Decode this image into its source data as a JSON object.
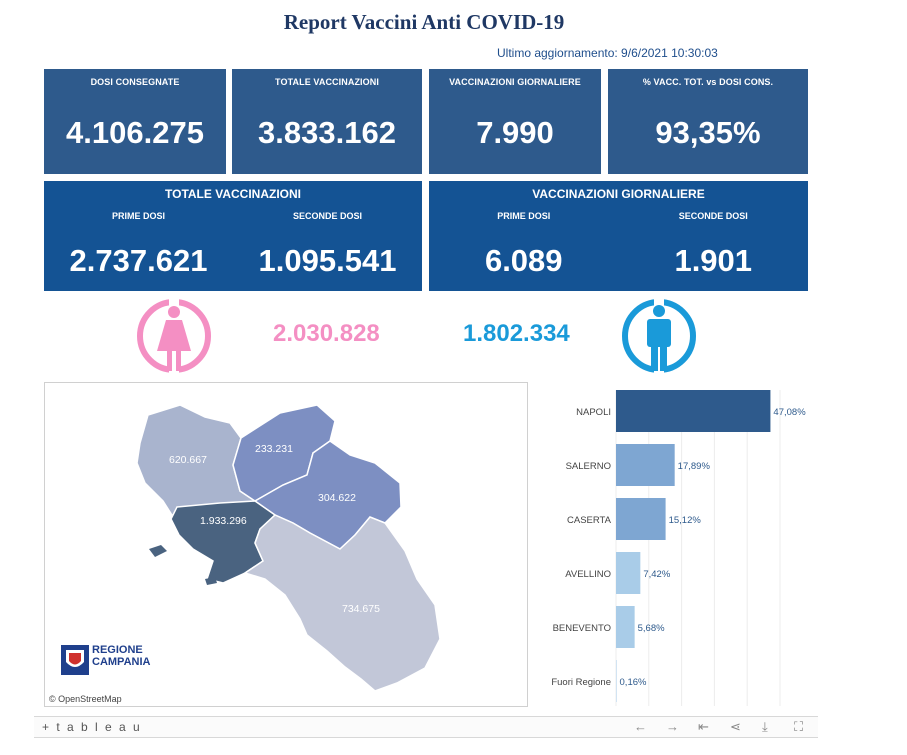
{
  "header": {
    "title": "Report Vaccini Anti COVID-19",
    "updated": "Ultimo aggiornamento: 9/6/2021 10:30:03"
  },
  "kpis": [
    {
      "label": "DOSI  CONSEGNATE",
      "value": "4.106.275"
    },
    {
      "label": "TOTALE VACCINAZIONI",
      "value": "3.833.162"
    },
    {
      "label": "VACCINAZIONI GIORNALIERE",
      "value": "7.990"
    },
    {
      "label": "% VACC. TOT. vs DOSI CONS.",
      "value": "93,35%"
    }
  ],
  "panels": [
    {
      "title": "TOTALE VACCINAZIONI",
      "first_label": "PRIME DOSI",
      "first_value": "2.737.621",
      "second_label": "SECONDE DOSI",
      "second_value": "1.095.541"
    },
    {
      "title": "VACCINAZIONI GIORNALIERE",
      "first_label": "PRIME DOSI",
      "first_value": "6.089",
      "second_label": "SECONDE DOSI",
      "second_value": "1.901"
    }
  ],
  "gender": {
    "female_value": "2.030.828",
    "female_color": "#f48fc3",
    "male_value": "1.802.334",
    "male_color": "#1a9ad9"
  },
  "map": {
    "provinces": [
      {
        "name": "Caserta",
        "value": "620.667",
        "color": "#a9b4ce"
      },
      {
        "name": "Benevento",
        "value": "233.231",
        "color": "#7d8fc2"
      },
      {
        "name": "Avellino",
        "value": "304.622",
        "color": "#7d8fc2"
      },
      {
        "name": "Napoli",
        "value": "1.933.296",
        "color": "#4a6380"
      },
      {
        "name": "Salerno",
        "value": "734.675",
        "color": "#c2c7d8"
      }
    ],
    "logo_line1": "REGIONE",
    "logo_line2": "CAMPANIA",
    "attribution": "© OpenStreetMap"
  },
  "chart_data": {
    "type": "bar",
    "orientation": "horizontal",
    "categories": [
      "NAPOLI",
      "SALERNO",
      "CASERTA",
      "AVELLINO",
      "BENEVENTO",
      "Fuori Regione"
    ],
    "values": [
      47.08,
      17.89,
      15.12,
      7.42,
      5.68,
      0.16
    ],
    "labels": [
      "47,08%",
      "17,89%",
      "15,12%",
      "7,42%",
      "5,68%",
      "0,16%"
    ],
    "colors": [
      "#2e5a8c",
      "#7ea6d2",
      "#7ea6d2",
      "#a9cce8",
      "#a9cce8",
      "#a9cce8"
    ],
    "xlim": [
      0,
      50
    ],
    "grid": true
  },
  "toolbar": {
    "brand": "+ t a b l e a u"
  }
}
